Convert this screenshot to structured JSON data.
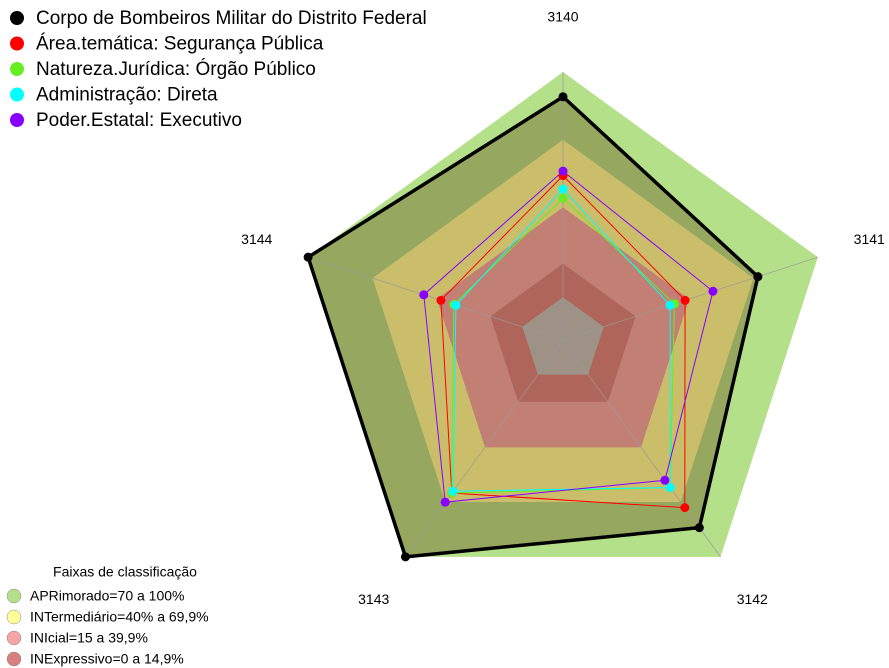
{
  "chart_data": {
    "type": "radar",
    "categories": [
      "3140",
      "3141",
      "3142",
      "3143",
      "3144"
    ],
    "rlim": [
      -19,
      100
    ],
    "series": [
      {
        "name": "Corpo de Bombeiros Militar do Distrito Federal",
        "color": "#000000",
        "values": [
          89,
          72,
          84,
          100,
          100
        ]
      },
      {
        "name": "Área.temática: Segurança Pública",
        "color": "#ff0000",
        "values": [
          54,
          38,
          73,
          65,
          38
        ]
      },
      {
        "name": "Natureza.Jurídica: Órgão Público",
        "color": "#66ee22",
        "values": [
          44,
          33,
          62,
          65,
          32
        ]
      },
      {
        "name": "Administração: Direta",
        "color": "#00ffff",
        "values": [
          48,
          31,
          62,
          64,
          31
        ]
      },
      {
        "name": "Poder.Estatal: Executivo",
        "color": "#8800ff",
        "values": [
          56,
          51,
          58,
          70,
          46
        ]
      }
    ],
    "bands_title": "Faixas de classificação",
    "bands": [
      {
        "label": "APRimorado=70 a 100%",
        "range": [
          70,
          100
        ],
        "color": "#b5e08a"
      },
      {
        "label": "INTermediário=40% a 69,9%",
        "range": [
          40,
          69.9
        ],
        "color": "#ffff99"
      },
      {
        "label": "INIcial=15 a 39,9%",
        "range": [
          15,
          39.9
        ],
        "color": "#f4a6a6"
      },
      {
        "label": "INExpressivo=0 a 14,9%",
        "range": [
          0,
          14.9
        ],
        "color": "#d88080"
      }
    ]
  }
}
